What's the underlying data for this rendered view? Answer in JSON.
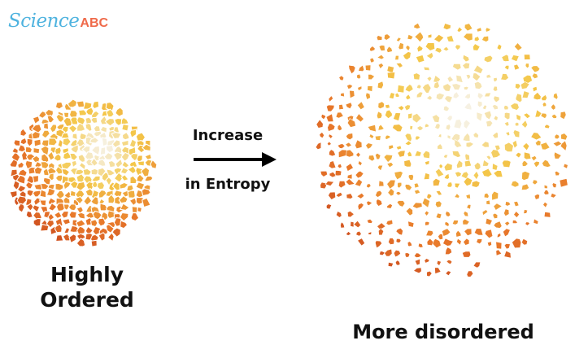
{
  "logo": {
    "science": "Science",
    "abc": "ABC"
  },
  "ordered": {
    "label_line1": "Highly",
    "label_line2": "Ordered"
  },
  "arrow": {
    "top_label": "Increase",
    "bottom_label": "in Entropy"
  },
  "disordered": {
    "label": "More disordered"
  },
  "colors": {
    "center": "#f6f6f6",
    "mid": "#f4c84a",
    "outer": "#e8782a",
    "edge": "#c4401c",
    "logo_science": "#4fb3df",
    "logo_abc": "#ef6a4a"
  }
}
